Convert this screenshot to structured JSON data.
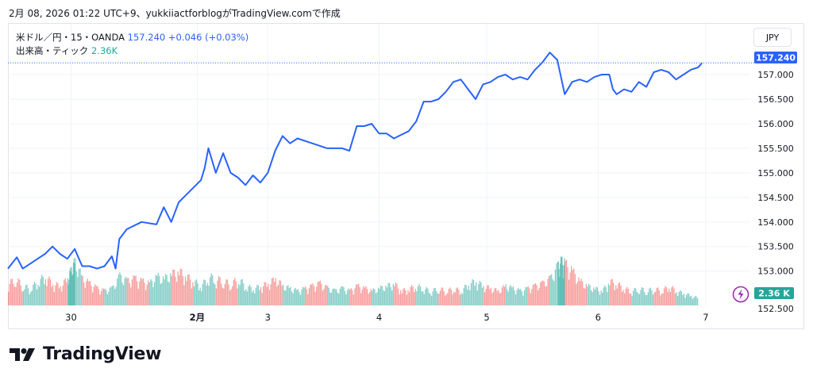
{
  "snapshot_caption": "2月 08, 2026 01:22 UTC+9、yukkiiactforblogがTradingView.comで作成",
  "legend": {
    "symbol": "米ドル／円・15・OANDA",
    "price": "157.240",
    "change": "+0.046",
    "change_pct": "(+0.03%)",
    "volume_label": "出来高・ティック",
    "volume_value": "2.36K"
  },
  "currency_button": "JPY",
  "current_price_label": "157.240",
  "volume_badge_label": "2.36 K",
  "brand": "TradingView",
  "colors": {
    "line": "#2962ff",
    "vol_up": "#26a69a",
    "vol_down": "#ef5350",
    "price_tag": "#2962ff",
    "vol_tag": "#26a69a",
    "icon": "#9c27b0"
  },
  "chart_data": {
    "type": "line",
    "ylim": [
      152.3,
      157.55
    ],
    "y_ticks": [
      "153.000",
      "153.500",
      "154.000",
      "154.500",
      "155.000",
      "155.500",
      "156.000",
      "156.500",
      "157.000"
    ],
    "y_tick_values": [
      153.0,
      153.5,
      154.0,
      154.5,
      155.0,
      155.5,
      156.0,
      156.5,
      157.0
    ],
    "x_ticks": [
      "30",
      "2月",
      "3",
      "4",
      "5",
      "6",
      "7"
    ],
    "x_tick_positions": [
      0.085,
      0.255,
      0.35,
      0.5,
      0.645,
      0.795,
      0.94
    ],
    "price_series": [
      [
        0.0,
        153.05
      ],
      [
        0.012,
        153.28
      ],
      [
        0.02,
        153.05
      ],
      [
        0.03,
        153.15
      ],
      [
        0.04,
        153.25
      ],
      [
        0.05,
        153.35
      ],
      [
        0.06,
        153.5
      ],
      [
        0.07,
        153.35
      ],
      [
        0.08,
        153.25
      ],
      [
        0.09,
        153.45
      ],
      [
        0.1,
        153.1
      ],
      [
        0.11,
        153.1
      ],
      [
        0.12,
        153.05
      ],
      [
        0.13,
        153.1
      ],
      [
        0.14,
        153.3
      ],
      [
        0.145,
        153.05
      ],
      [
        0.15,
        153.65
      ],
      [
        0.16,
        153.85
      ],
      [
        0.18,
        154.0
      ],
      [
        0.2,
        153.95
      ],
      [
        0.21,
        154.3
      ],
      [
        0.22,
        154.0
      ],
      [
        0.23,
        154.4
      ],
      [
        0.24,
        154.55
      ],
      [
        0.26,
        154.85
      ],
      [
        0.265,
        155.1
      ],
      [
        0.27,
        155.5
      ],
      [
        0.28,
        155.0
      ],
      [
        0.29,
        155.4
      ],
      [
        0.3,
        155.0
      ],
      [
        0.31,
        154.9
      ],
      [
        0.32,
        154.75
      ],
      [
        0.33,
        154.95
      ],
      [
        0.34,
        154.8
      ],
      [
        0.35,
        155.0
      ],
      [
        0.36,
        155.45
      ],
      [
        0.37,
        155.75
      ],
      [
        0.38,
        155.6
      ],
      [
        0.39,
        155.7
      ],
      [
        0.41,
        155.6
      ],
      [
        0.43,
        155.5
      ],
      [
        0.45,
        155.5
      ],
      [
        0.46,
        155.45
      ],
      [
        0.47,
        155.95
      ],
      [
        0.48,
        155.95
      ],
      [
        0.49,
        156.0
      ],
      [
        0.5,
        155.8
      ],
      [
        0.51,
        155.8
      ],
      [
        0.52,
        155.7
      ],
      [
        0.54,
        155.85
      ],
      [
        0.55,
        156.05
      ],
      [
        0.56,
        156.45
      ],
      [
        0.57,
        156.45
      ],
      [
        0.58,
        156.5
      ],
      [
        0.59,
        156.65
      ],
      [
        0.6,
        156.85
      ],
      [
        0.61,
        156.9
      ],
      [
        0.62,
        156.7
      ],
      [
        0.63,
        156.5
      ],
      [
        0.64,
        156.8
      ],
      [
        0.65,
        156.85
      ],
      [
        0.66,
        156.95
      ],
      [
        0.67,
        157.0
      ],
      [
        0.68,
        156.9
      ],
      [
        0.69,
        156.95
      ],
      [
        0.7,
        156.9
      ],
      [
        0.71,
        157.1
      ],
      [
        0.72,
        157.25
      ],
      [
        0.73,
        157.45
      ],
      [
        0.74,
        157.3
      ],
      [
        0.745,
        156.95
      ],
      [
        0.75,
        156.6
      ],
      [
        0.76,
        156.85
      ],
      [
        0.77,
        156.9
      ],
      [
        0.78,
        156.85
      ],
      [
        0.79,
        156.95
      ],
      [
        0.8,
        157.0
      ],
      [
        0.81,
        157.0
      ],
      [
        0.815,
        156.7
      ],
      [
        0.82,
        156.6
      ],
      [
        0.83,
        156.7
      ],
      [
        0.84,
        156.65
      ],
      [
        0.85,
        156.85
      ],
      [
        0.86,
        156.75
      ],
      [
        0.87,
        157.05
      ],
      [
        0.88,
        157.1
      ],
      [
        0.89,
        157.05
      ],
      [
        0.9,
        156.9
      ],
      [
        0.91,
        157.0
      ],
      [
        0.92,
        157.1
      ],
      [
        0.93,
        157.15
      ],
      [
        0.935,
        157.24
      ]
    ],
    "volume_series": [
      [
        0.0,
        0.45,
        1
      ],
      [
        0.01,
        0.55,
        0
      ],
      [
        0.02,
        0.4,
        1
      ],
      [
        0.03,
        0.35,
        0
      ],
      [
        0.04,
        0.5,
        1
      ],
      [
        0.05,
        0.6,
        0
      ],
      [
        0.06,
        0.45,
        1
      ],
      [
        0.07,
        0.4,
        0
      ],
      [
        0.08,
        0.55,
        1
      ],
      [
        0.085,
        0.75,
        0
      ],
      [
        0.09,
        0.9,
        1
      ],
      [
        0.1,
        0.55,
        0
      ],
      [
        0.11,
        0.45,
        1
      ],
      [
        0.12,
        0.35,
        0
      ],
      [
        0.13,
        0.3,
        1
      ],
      [
        0.14,
        0.35,
        0
      ],
      [
        0.15,
        0.6,
        1
      ],
      [
        0.16,
        0.5,
        0
      ],
      [
        0.17,
        0.55,
        1
      ],
      [
        0.18,
        0.5,
        0
      ],
      [
        0.19,
        0.45,
        1
      ],
      [
        0.2,
        0.6,
        0
      ],
      [
        0.21,
        0.55,
        1
      ],
      [
        0.22,
        0.65,
        0
      ],
      [
        0.23,
        0.7,
        1
      ],
      [
        0.24,
        0.6,
        0
      ],
      [
        0.25,
        0.5,
        1
      ],
      [
        0.26,
        0.4,
        0
      ],
      [
        0.27,
        0.6,
        1
      ],
      [
        0.28,
        0.55,
        0
      ],
      [
        0.29,
        0.5,
        1
      ],
      [
        0.3,
        0.45,
        0
      ],
      [
        0.31,
        0.55,
        1
      ],
      [
        0.32,
        0.4,
        0
      ],
      [
        0.33,
        0.35,
        1
      ],
      [
        0.34,
        0.4,
        0
      ],
      [
        0.35,
        0.45,
        1
      ],
      [
        0.36,
        0.55,
        0
      ],
      [
        0.37,
        0.4,
        1
      ],
      [
        0.38,
        0.35,
        0
      ],
      [
        0.39,
        0.3,
        1
      ],
      [
        0.4,
        0.35,
        0
      ],
      [
        0.41,
        0.4,
        1
      ],
      [
        0.42,
        0.45,
        0
      ],
      [
        0.43,
        0.35,
        1
      ],
      [
        0.44,
        0.3,
        0
      ],
      [
        0.45,
        0.35,
        1
      ],
      [
        0.46,
        0.3,
        0
      ],
      [
        0.47,
        0.4,
        1
      ],
      [
        0.48,
        0.35,
        0
      ],
      [
        0.49,
        0.3,
        1
      ],
      [
        0.5,
        0.35,
        0
      ],
      [
        0.51,
        0.4,
        1
      ],
      [
        0.52,
        0.45,
        0
      ],
      [
        0.53,
        0.3,
        1
      ],
      [
        0.54,
        0.35,
        0
      ],
      [
        0.55,
        0.4,
        1
      ],
      [
        0.56,
        0.35,
        0
      ],
      [
        0.57,
        0.3,
        1
      ],
      [
        0.58,
        0.35,
        0
      ],
      [
        0.59,
        0.3,
        1
      ],
      [
        0.6,
        0.35,
        0
      ],
      [
        0.61,
        0.3,
        1
      ],
      [
        0.62,
        0.45,
        0
      ],
      [
        0.63,
        0.5,
        1
      ],
      [
        0.64,
        0.4,
        0
      ],
      [
        0.65,
        0.35,
        1
      ],
      [
        0.66,
        0.3,
        0
      ],
      [
        0.67,
        0.4,
        1
      ],
      [
        0.68,
        0.35,
        0
      ],
      [
        0.69,
        0.3,
        1
      ],
      [
        0.7,
        0.35,
        0
      ],
      [
        0.71,
        0.4,
        1
      ],
      [
        0.72,
        0.45,
        0
      ],
      [
        0.73,
        0.55,
        1
      ],
      [
        0.74,
        0.8,
        0
      ],
      [
        0.745,
        0.9,
        1
      ],
      [
        0.75,
        0.85,
        0
      ],
      [
        0.76,
        0.7,
        1
      ],
      [
        0.77,
        0.5,
        0
      ],
      [
        0.78,
        0.4,
        1
      ],
      [
        0.79,
        0.35,
        0
      ],
      [
        0.8,
        0.3,
        1
      ],
      [
        0.81,
        0.5,
        0
      ],
      [
        0.82,
        0.45,
        1
      ],
      [
        0.83,
        0.35,
        0
      ],
      [
        0.84,
        0.3,
        1
      ],
      [
        0.85,
        0.35,
        0
      ],
      [
        0.86,
        0.3,
        1
      ],
      [
        0.87,
        0.35,
        0
      ],
      [
        0.88,
        0.3,
        1
      ],
      [
        0.89,
        0.4,
        0
      ],
      [
        0.9,
        0.3,
        1
      ],
      [
        0.91,
        0.25,
        0
      ],
      [
        0.92,
        0.2,
        1
      ],
      [
        0.93,
        0.15,
        0
      ]
    ]
  }
}
